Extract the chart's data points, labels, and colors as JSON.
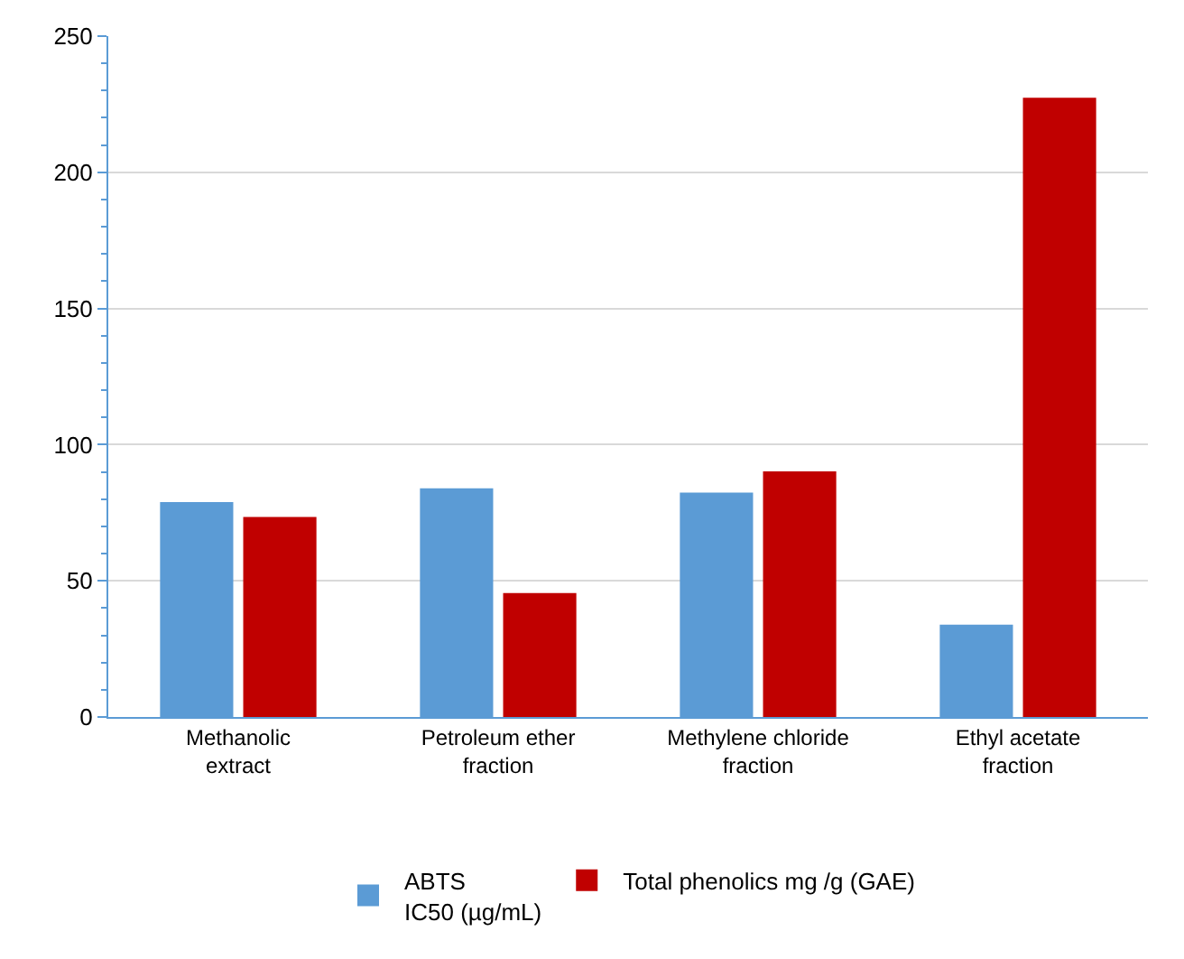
{
  "chart_data": {
    "type": "bar",
    "categories": [
      "Methanolic\nextract",
      "Petroleum ether\nfraction",
      "Methylene chloride\nfraction",
      "Ethyl acetate\nfraction"
    ],
    "series": [
      {
        "name": "ABTS\nIC50 (µg/mL)",
        "color": "#5b9bd5",
        "values": [
          78.9,
          84.0,
          82.4,
          33.9
        ]
      },
      {
        "name": "Total phenolics mg /g (GAE)",
        "color": "#c00000",
        "values": [
          73.4,
          45.5,
          90.2,
          227.4
        ]
      }
    ],
    "ylim": [
      0,
      250
    ],
    "yticks": [
      0,
      50,
      100,
      150,
      200,
      250
    ],
    "grid": "y",
    "legend": "bottom"
  }
}
